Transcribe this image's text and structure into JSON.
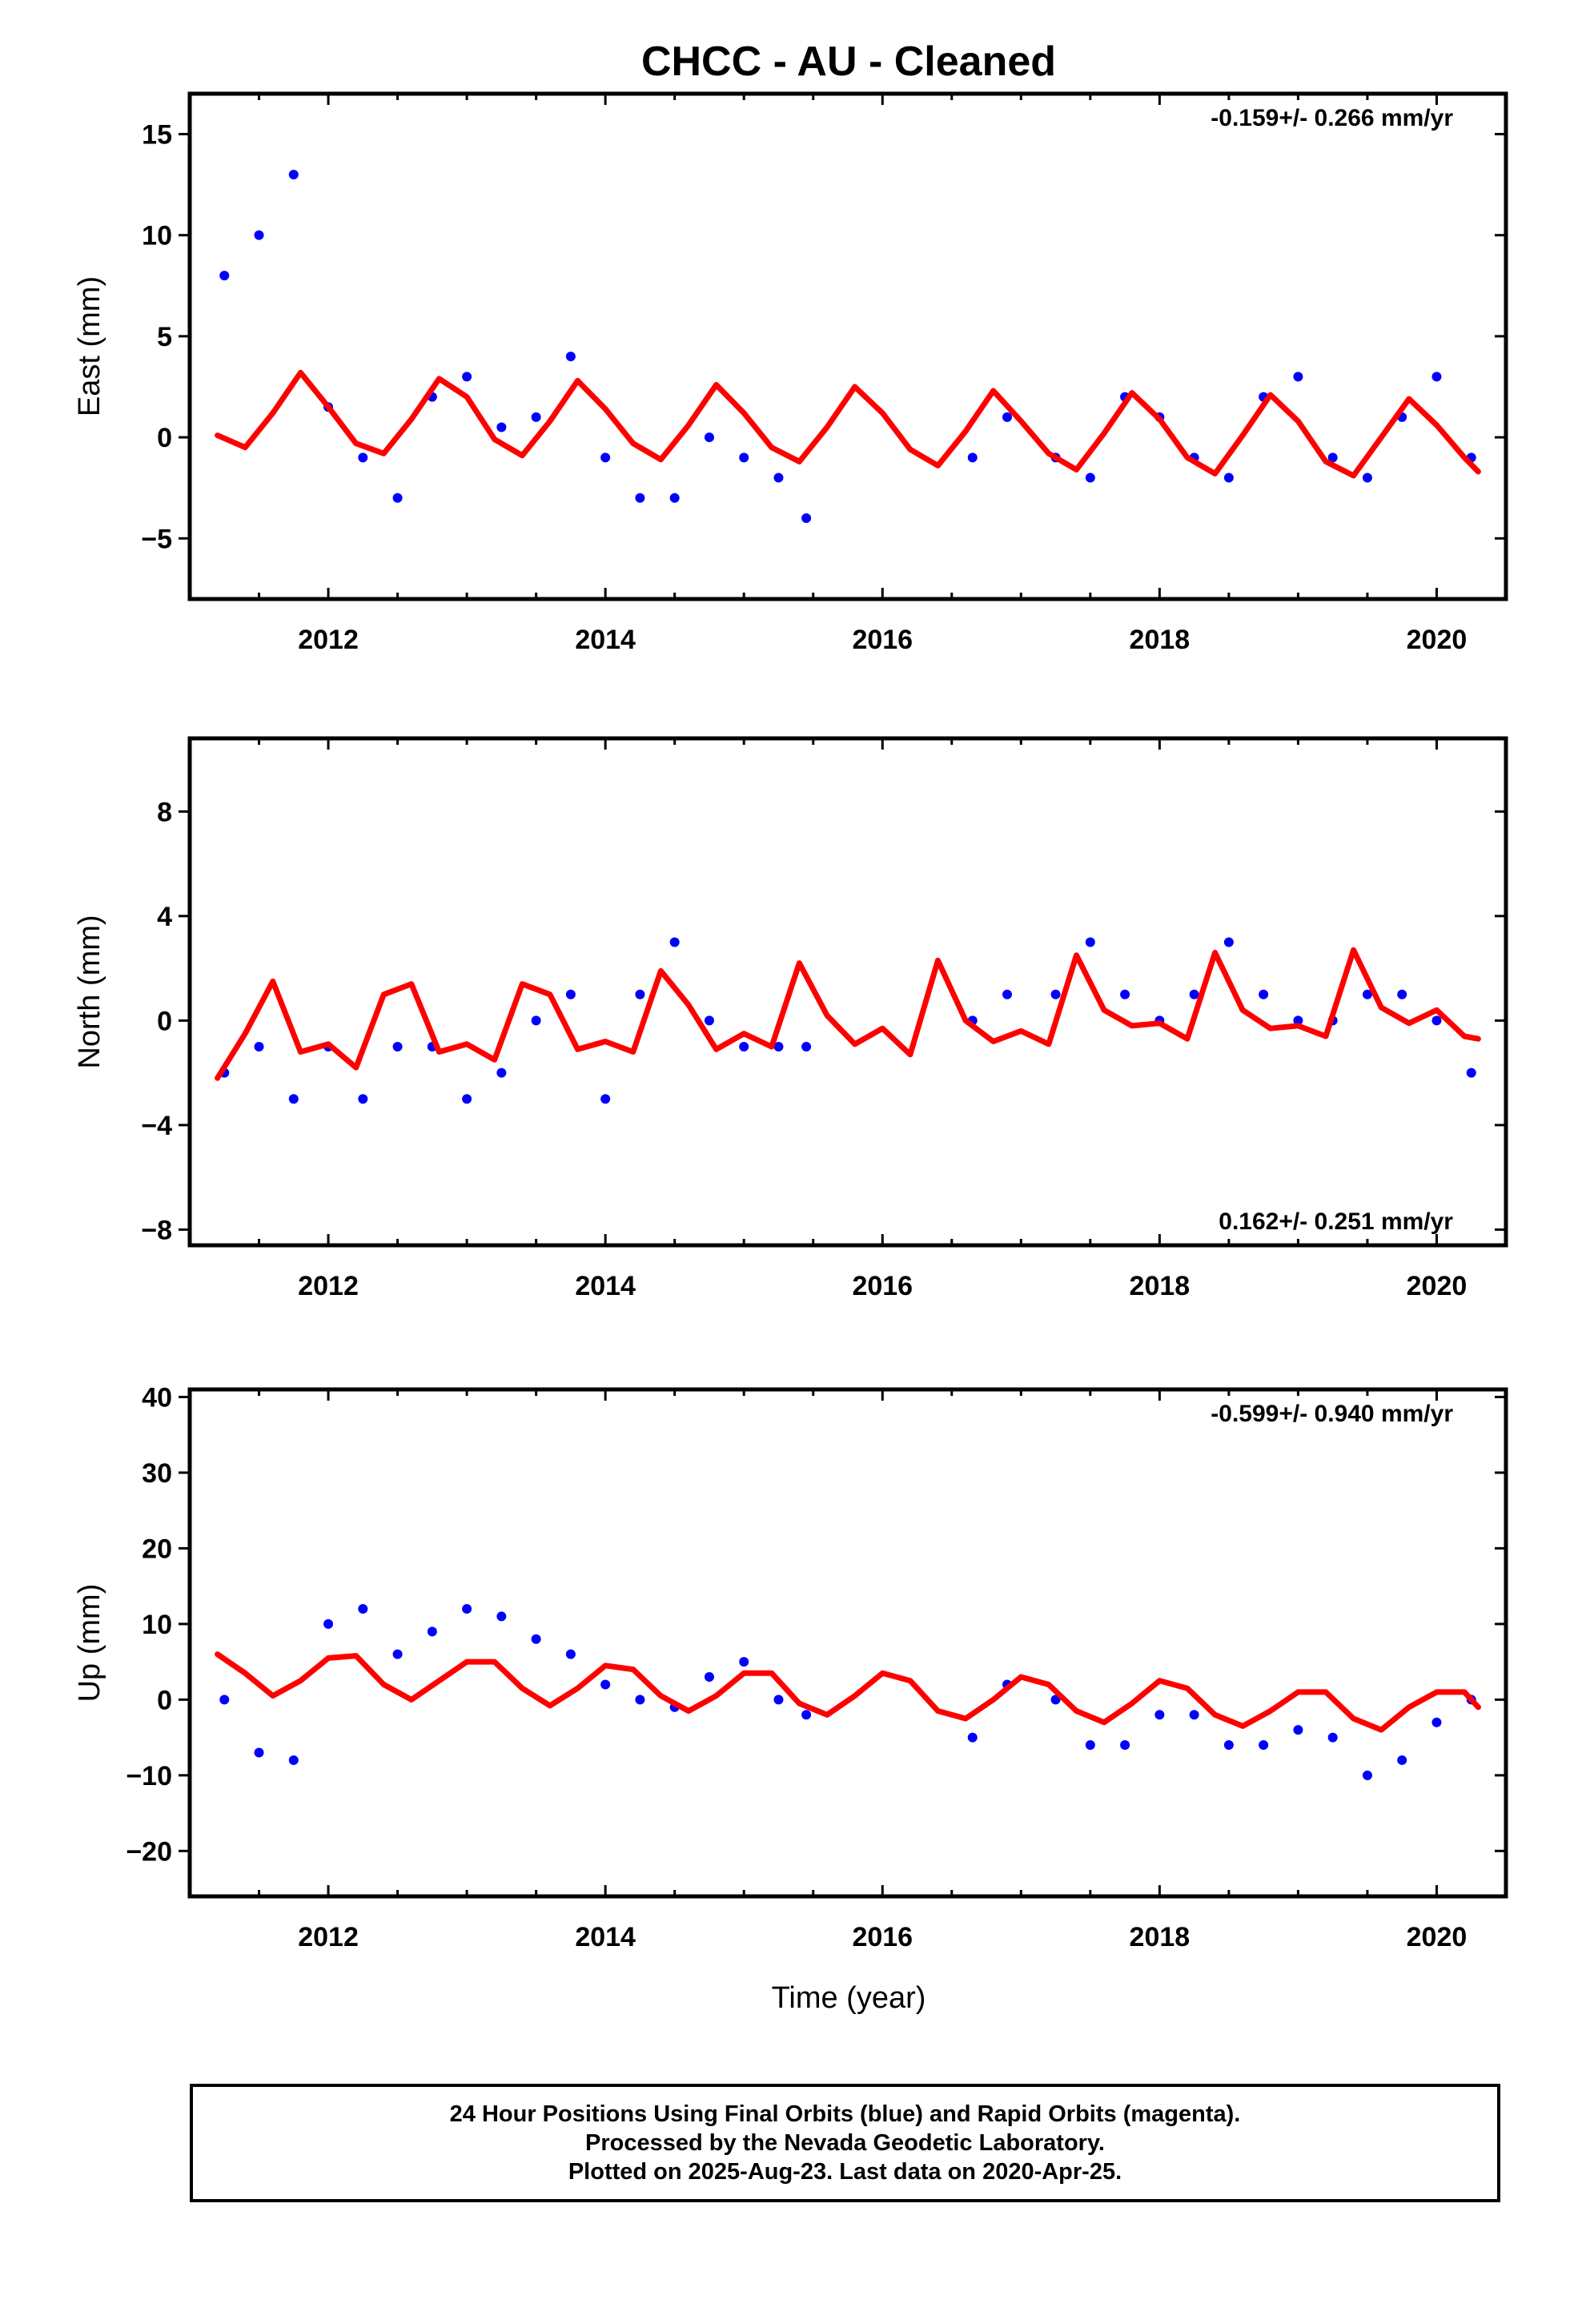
{
  "title": "CHCC  - AU - Cleaned",
  "xlabel": "Time (year)",
  "x_ticks": [
    "2012",
    "2014",
    "2016",
    "2018",
    "2020"
  ],
  "footer": {
    "line1": "24 Hour Positions Using Final Orbits (blue) and Rapid Orbits (magenta).",
    "line2": "Processed by the Nevada Geodetic Laboratory.",
    "line3": "Plotted on 2025-Aug-23. Last data on 2020-Apr-25."
  },
  "colors": {
    "points": "#0000ff",
    "model": "#ff0000",
    "axes": "#000000"
  },
  "chart_data": [
    {
      "type": "scatter",
      "ylabel": "East (mm)",
      "rate": "-0.159+/- 0.266 mm/yr",
      "rate_position": "top-right",
      "xlim": [
        2011.0,
        2020.5
      ],
      "ylim": [
        -8,
        17
      ],
      "y_ticks": [
        -5,
        0,
        5,
        10,
        15
      ],
      "y_tick_labels": [
        "−5",
        "0",
        "5",
        "10",
        "15"
      ],
      "grid": false,
      "series": [
        {
          "x": [
            2011.25,
            2011.5,
            2011.75,
            2012.0,
            2012.25,
            2012.5,
            2012.75,
            2013.0,
            2013.25,
            2013.5,
            2013.75,
            2014.0,
            2014.25,
            2014.5,
            2014.75,
            2015.0,
            2015.25,
            2015.45,
            2016.65,
            2016.9,
            2017.25,
            2017.5,
            2017.75,
            2018.0,
            2018.25,
            2018.5,
            2018.75,
            2019.0,
            2019.25,
            2019.5,
            2019.75,
            2020.0,
            2020.25
          ],
          "y": [
            8,
            10,
            13,
            1.5,
            -1,
            -3,
            2,
            3,
            0.5,
            1,
            4,
            -1,
            -3,
            -3,
            0,
            -1,
            -2,
            -4,
            -1,
            1,
            -1,
            -2,
            2,
            1,
            -1,
            -2,
            2,
            3,
            -1,
            -2,
            1,
            3,
            -1
          ]
        },
        {
          "x": [
            2011.2,
            2011.4,
            2011.6,
            2011.8,
            2012.0,
            2012.2,
            2012.4,
            2012.6,
            2012.8,
            2013.0,
            2013.2,
            2013.4,
            2013.6,
            2013.8,
            2014.0,
            2014.2,
            2014.4,
            2014.6,
            2014.8,
            2015.0,
            2015.2,
            2015.4,
            2015.6,
            2015.8,
            2016.0,
            2016.2,
            2016.4,
            2016.6,
            2016.8,
            2017.0,
            2017.2,
            2017.4,
            2017.6,
            2017.8,
            2018.0,
            2018.2,
            2018.4,
            2018.6,
            2018.8,
            2019.0,
            2019.2,
            2019.4,
            2019.6,
            2019.8,
            2020.0,
            2020.2,
            2020.3
          ],
          "y": [
            0.1,
            -0.5,
            1.2,
            3.2,
            1.5,
            -0.3,
            -0.8,
            0.9,
            2.9,
            2.0,
            -0.1,
            -0.9,
            0.8,
            2.8,
            1.4,
            -0.3,
            -1.1,
            0.6,
            2.6,
            1.2,
            -0.5,
            -1.2,
            0.5,
            2.5,
            1.2,
            -0.6,
            -1.4,
            0.3,
            2.3,
            0.8,
            -0.8,
            -1.6,
            0.2,
            2.2,
            0.9,
            -1.0,
            -1.8,
            0.1,
            2.1,
            0.8,
            -1.2,
            -1.9,
            0.0,
            1.9,
            0.6,
            -1.0,
            -1.7
          ]
        }
      ]
    },
    {
      "type": "scatter",
      "ylabel": "North (mm)",
      "rate": "0.162+/- 0.251 mm/yr",
      "rate_position": "bottom-right",
      "xlim": [
        2011.0,
        2020.5
      ],
      "ylim": [
        -8.6,
        10.8
      ],
      "y_ticks": [
        -8,
        -4,
        0,
        4,
        8
      ],
      "y_tick_labels": [
        "−8",
        "−4",
        "0",
        "4",
        "8"
      ],
      "grid": false,
      "series": [
        {
          "x": [
            2011.25,
            2011.5,
            2011.75,
            2012.0,
            2012.25,
            2012.5,
            2012.75,
            2013.0,
            2013.25,
            2013.5,
            2013.75,
            2014.0,
            2014.25,
            2014.5,
            2014.75,
            2015.0,
            2015.25,
            2015.45,
            2016.65,
            2016.9,
            2017.25,
            2017.5,
            2017.75,
            2018.0,
            2018.25,
            2018.5,
            2018.75,
            2019.0,
            2019.25,
            2019.5,
            2019.75,
            2020.0,
            2020.25
          ],
          "y": [
            -2,
            -1,
            -3,
            -1,
            -3,
            -1,
            -1,
            -3,
            -2,
            0,
            1,
            -3,
            1,
            3,
            0,
            -1,
            -1,
            -1,
            0,
            1,
            1,
            3,
            1,
            0,
            1,
            3,
            1,
            0,
            0,
            1,
            1,
            0,
            -2
          ]
        },
        {
          "x": [
            2011.2,
            2011.4,
            2011.6,
            2011.8,
            2012.0,
            2012.2,
            2012.4,
            2012.6,
            2012.8,
            2013.0,
            2013.2,
            2013.4,
            2013.6,
            2013.8,
            2014.0,
            2014.2,
            2014.4,
            2014.6,
            2014.8,
            2015.0,
            2015.2,
            2015.4,
            2015.6,
            2015.8,
            2016.0,
            2016.2,
            2016.4,
            2016.6,
            2016.8,
            2017.0,
            2017.2,
            2017.4,
            2017.6,
            2017.8,
            2018.0,
            2018.2,
            2018.4,
            2018.6,
            2018.8,
            2019.0,
            2019.2,
            2019.4,
            2019.6,
            2019.8,
            2020.0,
            2020.2,
            2020.3
          ],
          "y": [
            -2.2,
            -0.5,
            1.5,
            -1.2,
            -0.9,
            -1.8,
            1.0,
            1.4,
            -1.2,
            -0.9,
            -1.5,
            1.4,
            1.0,
            -1.1,
            -0.8,
            -1.2,
            1.9,
            0.6,
            -1.1,
            -0.5,
            -1.0,
            2.2,
            0.2,
            -0.9,
            -0.3,
            -1.3,
            2.3,
            0.0,
            -0.8,
            -0.4,
            -0.9,
            2.5,
            0.4,
            -0.2,
            -0.1,
            -0.7,
            2.6,
            0.4,
            -0.3,
            -0.2,
            -0.6,
            2.7,
            0.5,
            -0.1,
            0.4,
            -0.6,
            -0.7
          ]
        }
      ]
    },
    {
      "type": "scatter",
      "ylabel": "Up (mm)",
      "rate": "-0.599+/- 0.940 mm/yr",
      "rate_position": "top-right",
      "xlim": [
        2011.0,
        2020.5
      ],
      "ylim": [
        -26,
        41
      ],
      "y_ticks": [
        -20,
        -10,
        0,
        10,
        20,
        30,
        40
      ],
      "y_tick_labels": [
        "−20",
        "−10",
        "0",
        "10",
        "20",
        "30",
        "40"
      ],
      "grid": false,
      "series": [
        {
          "x": [
            2011.25,
            2011.5,
            2011.75,
            2012.0,
            2012.25,
            2012.5,
            2012.75,
            2013.0,
            2013.25,
            2013.5,
            2013.75,
            2014.0,
            2014.25,
            2014.5,
            2014.75,
            2015.0,
            2015.25,
            2015.45,
            2016.65,
            2016.9,
            2017.25,
            2017.5,
            2017.75,
            2018.0,
            2018.25,
            2018.5,
            2018.75,
            2019.0,
            2019.25,
            2019.5,
            2019.75,
            2020.0,
            2020.25
          ],
          "y": [
            0,
            -7,
            -8,
            10,
            12,
            6,
            9,
            12,
            11,
            8,
            6,
            2,
            0,
            -1,
            3,
            5,
            0,
            -2,
            -5,
            2,
            0,
            -6,
            -6,
            -2,
            -2,
            -6,
            -6,
            -4,
            -5,
            -10,
            -8,
            -3,
            0
          ]
        },
        {
          "x": [
            2011.2,
            2011.4,
            2011.6,
            2011.8,
            2012.0,
            2012.2,
            2012.4,
            2012.6,
            2012.8,
            2013.0,
            2013.2,
            2013.4,
            2013.6,
            2013.8,
            2014.0,
            2014.2,
            2014.4,
            2014.6,
            2014.8,
            2015.0,
            2015.2,
            2015.4,
            2015.6,
            2015.8,
            2016.0,
            2016.2,
            2016.4,
            2016.6,
            2016.8,
            2017.0,
            2017.2,
            2017.4,
            2017.6,
            2017.8,
            2018.0,
            2018.2,
            2018.4,
            2018.6,
            2018.8,
            2019.0,
            2019.2,
            2019.4,
            2019.6,
            2019.8,
            2020.0,
            2020.2,
            2020.3
          ],
          "y": [
            6.0,
            3.5,
            0.5,
            2.5,
            5.5,
            5.8,
            2.0,
            0.0,
            2.5,
            5.0,
            5.0,
            1.5,
            -0.8,
            1.5,
            4.5,
            4.0,
            0.5,
            -1.5,
            0.5,
            3.5,
            3.5,
            -0.5,
            -2.0,
            0.5,
            3.5,
            2.5,
            -1.5,
            -2.5,
            0.0,
            3.0,
            2.0,
            -1.5,
            -3.0,
            -0.5,
            2.5,
            1.5,
            -2.0,
            -3.5,
            -1.5,
            1.0,
            1.0,
            -2.5,
            -4.0,
            -1.0,
            1.0,
            1.0,
            -1.0
          ]
        }
      ]
    }
  ]
}
